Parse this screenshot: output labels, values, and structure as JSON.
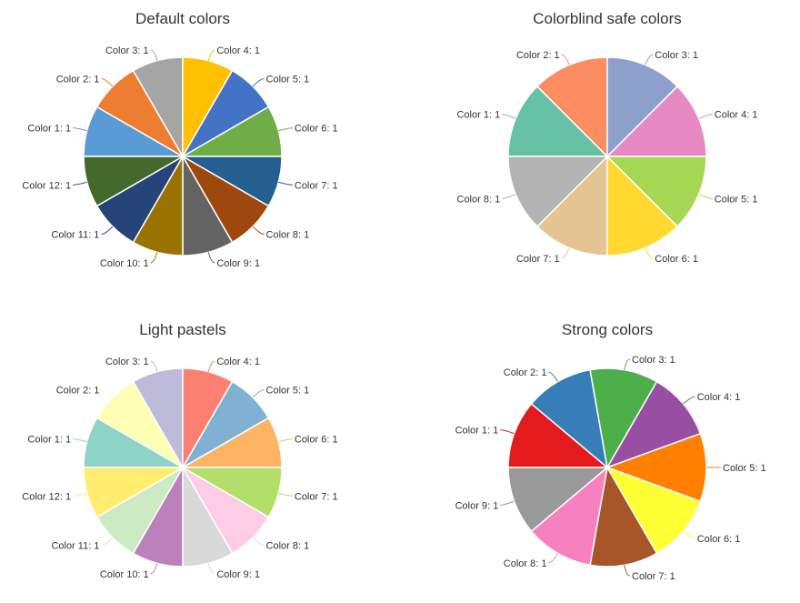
{
  "chart_data": [
    {
      "type": "pie",
      "title": "Default colors",
      "categories": [
        "Color 1",
        "Color 2",
        "Color 3",
        "Color 4",
        "Color 5",
        "Color 6",
        "Color 7",
        "Color 8",
        "Color 9",
        "Color 10",
        "Color 11",
        "Color 12"
      ],
      "values": [
        1,
        1,
        1,
        1,
        1,
        1,
        1,
        1,
        1,
        1,
        1,
        1
      ],
      "colors": [
        "#5B9BD5",
        "#ED7D31",
        "#A5A5A5",
        "#FFC000",
        "#4472C4",
        "#70AD47",
        "#255E91",
        "#9E480E",
        "#636363",
        "#997300",
        "#264478",
        "#43682B"
      ],
      "start": "left, clockwise"
    },
    {
      "type": "pie",
      "title": "Colorblind safe colors",
      "categories": [
        "Color 1",
        "Color 2",
        "Color 3",
        "Color 4",
        "Color 5",
        "Color 6",
        "Color 7",
        "Color 8"
      ],
      "values": [
        1,
        1,
        1,
        1,
        1,
        1,
        1,
        1
      ],
      "colors": [
        "#66C2A5",
        "#FC8D62",
        "#8DA0CB",
        "#E78AC3",
        "#A6D854",
        "#FFD92F",
        "#E5C494",
        "#B3B3B3"
      ],
      "start": "left, clockwise"
    },
    {
      "type": "pie",
      "title": "Light pastels",
      "categories": [
        "Color 1",
        "Color 2",
        "Color 3",
        "Color 4",
        "Color 5",
        "Color 6",
        "Color 7",
        "Color 8",
        "Color 9",
        "Color 10",
        "Color 11",
        "Color 12"
      ],
      "values": [
        1,
        1,
        1,
        1,
        1,
        1,
        1,
        1,
        1,
        1,
        1,
        1
      ],
      "colors": [
        "#8DD3C7",
        "#FFFFB3",
        "#BEBADA",
        "#FB8072",
        "#80B1D3",
        "#FDB462",
        "#B3DE69",
        "#FCCDE5",
        "#D9D9D9",
        "#BC80BD",
        "#CCEBC5",
        "#FFED6F"
      ],
      "start": "left, clockwise"
    },
    {
      "type": "pie",
      "title": "Strong colors",
      "categories": [
        "Color 1",
        "Color 2",
        "Color 3",
        "Color 4",
        "Color 5",
        "Color 6",
        "Color 7",
        "Color 8",
        "Color 9"
      ],
      "values": [
        1,
        1,
        1,
        1,
        1,
        1,
        1,
        1,
        1
      ],
      "colors": [
        "#E41A1C",
        "#377EB8",
        "#4DAF4A",
        "#984EA3",
        "#FF7F00",
        "#FFFF33",
        "#A65628",
        "#F781BF",
        "#999999"
      ],
      "start": "left, clockwise"
    }
  ]
}
